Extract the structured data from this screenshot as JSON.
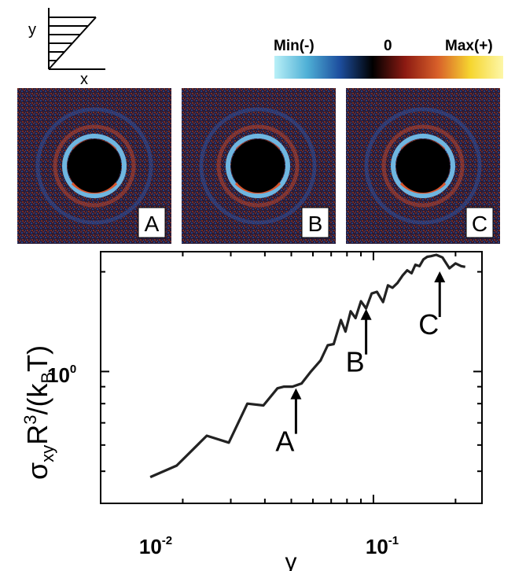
{
  "shear_schematic": {
    "x_label": "x",
    "y_label": "y"
  },
  "colorbar": {
    "min_label": "Min(-)",
    "zero_label": "0",
    "max_label": "Max(+)",
    "stops": [
      "#b9f0f7",
      "#4fb0d6",
      "#1d4e9e",
      "#000000",
      "#8c1a12",
      "#d8602a",
      "#f6d630",
      "#fdf7a8"
    ]
  },
  "panels": [
    {
      "label": "A"
    },
    {
      "label": "B"
    },
    {
      "label": "C"
    }
  ],
  "chart_data": {
    "type": "line",
    "xscale": "log",
    "yscale": "log",
    "xlim": [
      0.01,
      0.25
    ],
    "ylim": [
      0.4,
      2.3
    ],
    "x_ticks": [
      "10-2",
      "10-1"
    ],
    "y_ticks": [
      "100"
    ],
    "xlabel": "γ",
    "ylabel": "σxyR3/(kBT)",
    "series": [
      {
        "x": [
          0.0152,
          0.019,
          0.0245,
          0.0295,
          0.0345,
          0.0395,
          0.0445,
          0.047,
          0.0505,
          0.0545,
          0.059,
          0.064,
          0.068,
          0.0715,
          0.076,
          0.079,
          0.0825,
          0.086,
          0.09,
          0.094,
          0.0985,
          0.103,
          0.1085,
          0.113,
          0.1175,
          0.1225,
          0.128,
          0.133,
          0.138,
          0.1425,
          0.1475,
          0.1525,
          0.1575,
          0.1625,
          0.17,
          0.179,
          0.19,
          0.2,
          0.21,
          0.217
        ],
        "y": [
          0.48,
          0.52,
          0.64,
          0.61,
          0.8,
          0.79,
          0.89,
          0.9,
          0.9,
          0.92,
          1.0,
          1.08,
          1.2,
          1.21,
          1.43,
          1.32,
          1.52,
          1.45,
          1.63,
          1.55,
          1.72,
          1.74,
          1.62,
          1.82,
          1.79,
          1.85,
          1.95,
          2.02,
          1.98,
          2.1,
          2.08,
          2.18,
          2.22,
          2.23,
          2.25,
          2.21,
          2.05,
          2.12,
          2.08,
          2.07
        ]
      }
    ],
    "annotations": [
      {
        "text": "A",
        "x": 0.052,
        "y": 0.91
      },
      {
        "text": "B",
        "x": 0.094,
        "y": 1.58
      },
      {
        "text": "C",
        "x": 0.175,
        "y": 2.05
      }
    ]
  }
}
